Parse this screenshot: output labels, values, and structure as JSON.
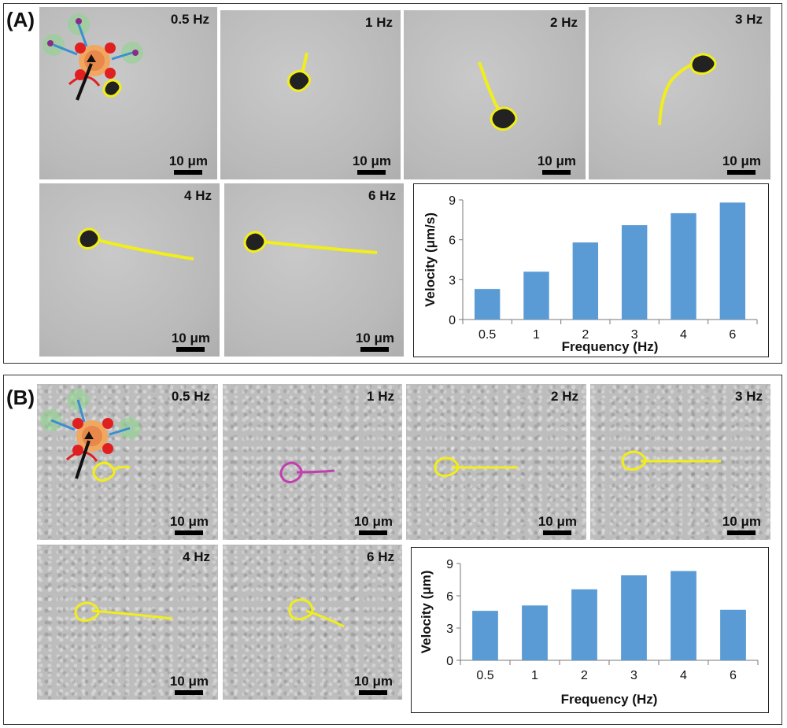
{
  "panels": [
    {
      "label": "(A)",
      "images": [
        {
          "freq": "0.5 Hz",
          "scale": "10 μm"
        },
        {
          "freq": "1 Hz",
          "scale": "10 μm"
        },
        {
          "freq": "2 Hz",
          "scale": "10 μm"
        },
        {
          "freq": "3 Hz",
          "scale": "10 μm"
        },
        {
          "freq": "4 Hz",
          "scale": "10 μm"
        },
        {
          "freq": "6 Hz",
          "scale": "10 μm"
        }
      ]
    },
    {
      "label": "(B)",
      "images": [
        {
          "freq": "0.5 Hz",
          "scale": "10 μm"
        },
        {
          "freq": "1 Hz",
          "scale": "10 μm"
        },
        {
          "freq": "2 Hz",
          "scale": "10 μm"
        },
        {
          "freq": "3 Hz",
          "scale": "10 μm"
        },
        {
          "freq": "4 Hz",
          "scale": "10 μm"
        },
        {
          "freq": "6 Hz",
          "scale": "10 μm"
        }
      ]
    }
  ],
  "colors": {
    "bar": "#5b9bd5",
    "track_yellow": "#f2ee1a",
    "track_magenta": "#c23fb0"
  },
  "chart_data": [
    {
      "type": "bar",
      "categories": [
        "0.5",
        "1",
        "2",
        "3",
        "4",
        "6"
      ],
      "values": [
        2.3,
        3.6,
        5.8,
        7.1,
        8.0,
        8.8
      ],
      "xlabel": "Frequency (Hz)",
      "ylabel": "Velocity (μm/s)",
      "ylim": [
        0,
        9
      ],
      "yticks": [
        0,
        3,
        6,
        9
      ],
      "grid": false
    },
    {
      "type": "bar",
      "categories": [
        "0.5",
        "1",
        "2",
        "3",
        "4",
        "6"
      ],
      "values": [
        4.6,
        5.1,
        6.6,
        7.9,
        8.3,
        4.7
      ],
      "xlabel": "Frequency (Hz)",
      "ylabel": "Velocity (μm)",
      "ylim": [
        0,
        9
      ],
      "yticks": [
        0,
        3,
        6,
        9
      ],
      "grid": false
    }
  ]
}
